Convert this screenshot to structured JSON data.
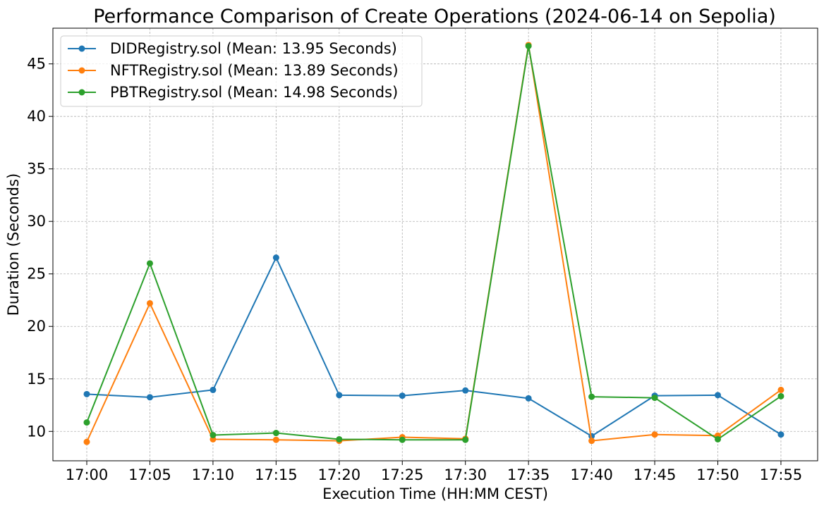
{
  "chart_data": {
    "type": "line",
    "title": "Performance Comparison of Create Operations (2024-06-14 on Sepolia)",
    "xlabel": "Execution Time (HH:MM CEST)",
    "ylabel": "Duration (Seconds)",
    "categories": [
      "17:00",
      "17:05",
      "17:10",
      "17:15",
      "17:20",
      "17:25",
      "17:30",
      "17:35",
      "17:40",
      "17:45",
      "17:50",
      "17:55"
    ],
    "ylim": [
      7.2,
      48.4
    ],
    "yticks": [
      10,
      15,
      20,
      25,
      30,
      35,
      40,
      45
    ],
    "grid": true,
    "legend_position": "top-left",
    "series": [
      {
        "name": "DIDRegistry.sol (Mean: 13.95 Seconds)",
        "color": "#1f77b4",
        "values": [
          13.55,
          13.25,
          13.95,
          26.55,
          13.45,
          13.4,
          13.9,
          13.15,
          9.55,
          13.4,
          13.45,
          9.7
        ]
      },
      {
        "name": "NFTRegistry.sol (Mean: 13.89 Seconds)",
        "color": "#ff7f0e",
        "values": [
          9.0,
          22.2,
          9.25,
          9.2,
          9.1,
          9.45,
          9.3,
          46.8,
          9.1,
          9.7,
          9.6,
          13.95
        ]
      },
      {
        "name": "PBTRegistry.sol (Mean: 14.98 Seconds)",
        "color": "#2ca02c",
        "values": [
          10.85,
          26.0,
          9.65,
          9.85,
          9.25,
          9.2,
          9.2,
          46.7,
          13.3,
          13.2,
          9.25,
          13.35
        ]
      }
    ]
  }
}
